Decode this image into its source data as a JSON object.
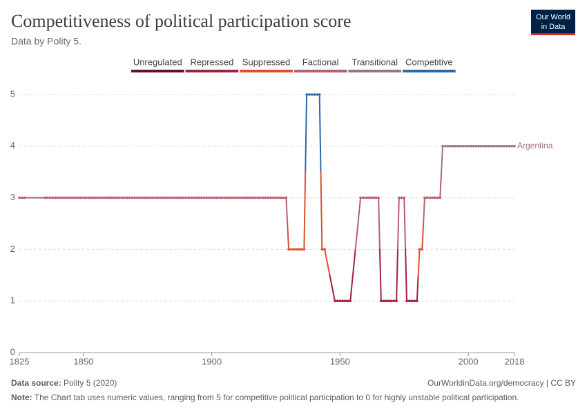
{
  "chart_data": {
    "type": "line",
    "title": "Competitiveness of political participation score",
    "subtitle": "Data by Polity 5.",
    "logo": [
      "Our World",
      "in Data"
    ],
    "legend": [
      {
        "name": "Unregulated",
        "color": "#6d0c25"
      },
      {
        "name": "Repressed",
        "color": "#a2203a"
      },
      {
        "name": "Suppressed",
        "color": "#e04e2f"
      },
      {
        "name": "Factional",
        "color": "#b5606a"
      },
      {
        "name": "Transitional",
        "color": "#9b7389"
      },
      {
        "name": "Competitive",
        "color": "#2b68ad"
      }
    ],
    "x": [
      1825,
      1826,
      1827,
      1835,
      1836,
      1837,
      1838,
      1839,
      1840,
      1841,
      1842,
      1843,
      1844,
      1845,
      1846,
      1847,
      1848,
      1849,
      1850,
      1851,
      1852,
      1853,
      1854,
      1855,
      1856,
      1857,
      1858,
      1859,
      1860,
      1861,
      1862,
      1863,
      1864,
      1865,
      1866,
      1867,
      1868,
      1869,
      1870,
      1871,
      1872,
      1873,
      1874,
      1875,
      1876,
      1877,
      1878,
      1879,
      1880,
      1881,
      1882,
      1883,
      1884,
      1885,
      1886,
      1887,
      1888,
      1889,
      1890,
      1891,
      1892,
      1893,
      1894,
      1895,
      1896,
      1897,
      1898,
      1899,
      1900,
      1901,
      1902,
      1903,
      1904,
      1905,
      1906,
      1907,
      1908,
      1909,
      1910,
      1911,
      1912,
      1913,
      1914,
      1915,
      1916,
      1917,
      1918,
      1919,
      1920,
      1921,
      1922,
      1923,
      1924,
      1925,
      1926,
      1927,
      1928,
      1929,
      1930,
      1931,
      1932,
      1933,
      1934,
      1935,
      1936,
      1937,
      1938,
      1939,
      1940,
      1941,
      1942,
      1943,
      1944,
      1948,
      1949,
      1950,
      1951,
      1952,
      1953,
      1954,
      1958,
      1959,
      1960,
      1961,
      1962,
      1963,
      1964,
      1965,
      1966,
      1967,
      1968,
      1969,
      1970,
      1971,
      1972,
      1973,
      1974,
      1975,
      1976,
      1977,
      1978,
      1979,
      1980,
      1981,
      1982,
      1983,
      1984,
      1985,
      1986,
      1987,
      1988,
      1989,
      1990,
      1991,
      1992,
      1993,
      1994,
      1995,
      1996,
      1997,
      1998,
      1999,
      2000,
      2001,
      2002,
      2003,
      2004,
      2005,
      2006,
      2007,
      2008,
      2009,
      2010,
      2011,
      2012,
      2013,
      2014,
      2015,
      2016,
      2017,
      2018
    ],
    "series": [
      {
        "name": "Argentina",
        "values": [
          3,
          3,
          3,
          3,
          3,
          3,
          3,
          3,
          3,
          3,
          3,
          3,
          3,
          3,
          3,
          3,
          3,
          3,
          3,
          3,
          3,
          3,
          3,
          3,
          3,
          3,
          3,
          3,
          3,
          3,
          3,
          3,
          3,
          3,
          3,
          3,
          3,
          3,
          3,
          3,
          3,
          3,
          3,
          3,
          3,
          3,
          3,
          3,
          3,
          3,
          3,
          3,
          3,
          3,
          3,
          3,
          3,
          3,
          3,
          3,
          3,
          3,
          3,
          3,
          3,
          3,
          3,
          3,
          3,
          3,
          3,
          3,
          3,
          3,
          3,
          3,
          3,
          3,
          3,
          3,
          3,
          3,
          3,
          3,
          3,
          3,
          3,
          3,
          3,
          3,
          3,
          3,
          3,
          3,
          3,
          3,
          3,
          3,
          2,
          2,
          2,
          2,
          2,
          2,
          2,
          5,
          5,
          5,
          5,
          5,
          5,
          2,
          2,
          1,
          1,
          1,
          1,
          1,
          1,
          1,
          3,
          3,
          3,
          3,
          3,
          3,
          3,
          3,
          1,
          1,
          1,
          1,
          1,
          1,
          1,
          3,
          3,
          3,
          1,
          1,
          1,
          1,
          1,
          2,
          2,
          3,
          3,
          3,
          3,
          3,
          3,
          3,
          4,
          4,
          4,
          4,
          4,
          4,
          4,
          4,
          4,
          4,
          4,
          4,
          4,
          4,
          4,
          4,
          4,
          4,
          4,
          4,
          4,
          4,
          4,
          4,
          4,
          4,
          4,
          4,
          4
        ]
      }
    ],
    "xlim": [
      1825,
      2018
    ],
    "xticks": [
      1825,
      1850,
      1900,
      1950,
      2000,
      2018
    ],
    "ylim": [
      0,
      5
    ],
    "yticks": [
      0,
      1,
      2,
      3,
      4,
      5
    ],
    "grid": true,
    "source_label": "Data source:",
    "source": "Polity 5 (2020)",
    "credit": "OurWorldinData.org/democracy | CC BY",
    "note_label": "Note:",
    "note": "The Chart tab uses numeric values, ranging from 5 for competitive political participation to 0 for highly unstable political participation."
  }
}
